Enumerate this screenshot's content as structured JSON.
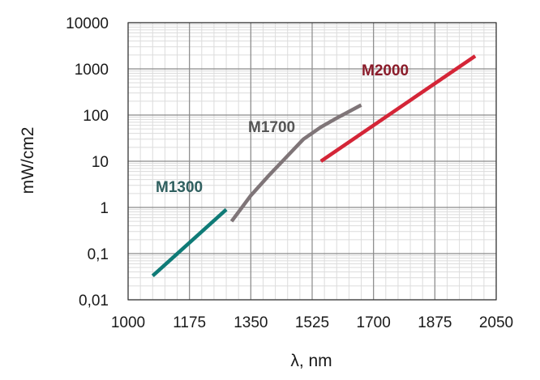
{
  "chart_data": {
    "type": "line",
    "xlabel": "λ, nm",
    "ylabel": "mW/cm2",
    "xlim": [
      1000,
      2050
    ],
    "ylim": [
      0.01,
      10000
    ],
    "y_scale": "log",
    "grid": true,
    "x_ticks": [
      1000,
      1175,
      1350,
      1525,
      1700,
      1875,
      2050
    ],
    "x_tick_labels": [
      "1000",
      "1175",
      "1350",
      "1525",
      "1700",
      "1875",
      "2050"
    ],
    "y_ticks": [
      0.01,
      0.1,
      1,
      10,
      100,
      1000,
      10000
    ],
    "y_tick_labels": [
      "0,01",
      "0,1",
      "1",
      "10",
      "100",
      "1000",
      "10000"
    ],
    "series": [
      {
        "name": "M1300",
        "color": "#0f7b77",
        "label_color": "#2f5f5f",
        "x": [
          1070,
          1280
        ],
        "y": [
          0.033,
          0.9
        ]
      },
      {
        "name": "M1700",
        "color": "#7f7578",
        "label_color": "#555555",
        "x": [
          1295,
          1350,
          1400,
          1450,
          1500,
          1550,
          1600,
          1665
        ],
        "y": [
          0.5,
          1.8,
          4.8,
          12,
          30,
          55,
          90,
          165
        ]
      },
      {
        "name": "M2000",
        "color": "#d42537",
        "label_color": "#8b1c2a",
        "x": [
          1550,
          1990
        ],
        "y": [
          10,
          1900
        ]
      }
    ]
  }
}
